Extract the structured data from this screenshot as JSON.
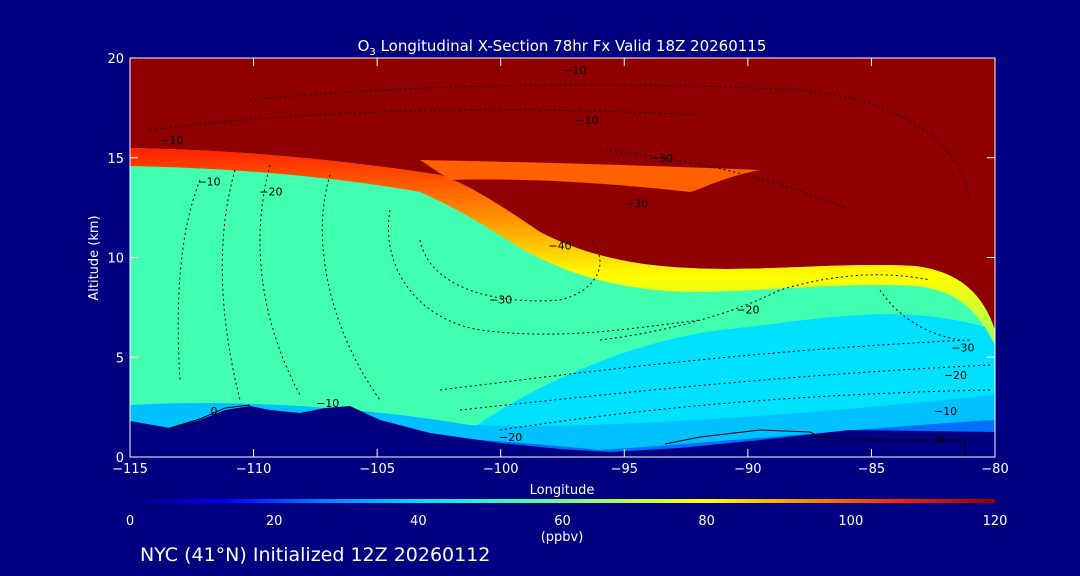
{
  "chart_data": {
    "type": "heatmap",
    "title_main": "O",
    "title_sub": "3",
    "title_rest": " Longitudinal X-Section 78hr  Fx Valid 18Z 20260115",
    "xlabel": "Longitude",
    "ylabel": "Altitude (km)",
    "xlim": [
      -115,
      -80
    ],
    "ylim": [
      0,
      20
    ],
    "x_ticks": [
      -115,
      -110,
      -105,
      -100,
      -95,
      -90,
      -85,
      -80
    ],
    "x_tick_labels": [
      "−115",
      "−110",
      "−105",
      "−100",
      "−95",
      "−90",
      "−85",
      "−80"
    ],
    "y_ticks": [
      0,
      5,
      10,
      15,
      20
    ],
    "y_tick_labels": [
      "0",
      "5",
      "10",
      "15",
      "20"
    ],
    "colorbar": {
      "label": "(ppbv)",
      "min": 0,
      "max": 120,
      "ticks": [
        0,
        20,
        40,
        60,
        80,
        100,
        120
      ],
      "tick_labels": [
        "0",
        "20",
        "40",
        "60",
        "80",
        "100",
        "120"
      ],
      "colors": [
        "#000080",
        "#0000ff",
        "#0080ff",
        "#00e0ff",
        "#40ffb0",
        "#a0ff60",
        "#ffff00",
        "#ff9000",
        "#ff2000",
        "#900000"
      ]
    },
    "contour_labels": [
      {
        "text": "−10",
        "lon": -113.3,
        "alt": 15.9
      },
      {
        "text": "−10",
        "lon": -111.8,
        "alt": 13.8
      },
      {
        "text": "−10",
        "lon": -97.0,
        "alt": 19.4
      },
      {
        "text": "−10",
        "lon": -96.5,
        "alt": 16.9
      },
      {
        "text": "−20",
        "lon": -109.3,
        "alt": 13.3
      },
      {
        "text": "−30",
        "lon": -93.5,
        "alt": 15.0
      },
      {
        "text": "−30",
        "lon": -94.5,
        "alt": 12.7
      },
      {
        "text": "−40",
        "lon": -97.6,
        "alt": 10.6
      },
      {
        "text": "−30",
        "lon": -100.0,
        "alt": 7.9
      },
      {
        "text": "−20",
        "lon": -90.0,
        "alt": 7.4
      },
      {
        "text": "−30",
        "lon": -81.3,
        "alt": 5.5
      },
      {
        "text": "−20",
        "lon": -81.6,
        "alt": 4.1
      },
      {
        "text": "−10",
        "lon": -82.0,
        "alt": 2.3
      },
      {
        "text": "0",
        "lon": -82.2,
        "alt": 0.9
      },
      {
        "text": "0",
        "lon": -111.6,
        "alt": 2.3
      },
      {
        "text": "−10",
        "lon": -107.0,
        "alt": 2.7
      },
      {
        "text": "−20",
        "lon": -99.6,
        "alt": 1.0
      }
    ],
    "grid": false
  },
  "footer": {
    "text": "NYC (41°N) Initialized 12Z 20260112"
  },
  "colors": {
    "background": "#000080",
    "foreground": "#ffffff"
  }
}
